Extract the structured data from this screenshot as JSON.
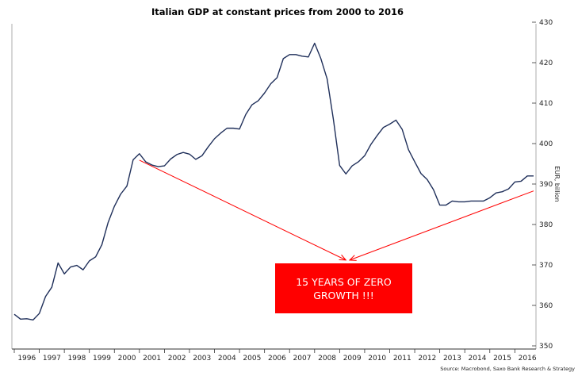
{
  "chart_data": {
    "type": "line",
    "title": "Italian GDP at constant prices from 2000 to 2016",
    "ylabel": "EUR, billion",
    "ylim": [
      350,
      430
    ],
    "y_ticks": [
      350,
      360,
      370,
      380,
      390,
      400,
      410,
      420,
      430
    ],
    "y_axis_side": "right",
    "grid": false,
    "x_tick_labels": [
      "1996",
      "1997",
      "1998",
      "1999",
      "2000",
      "2001",
      "2002",
      "2003",
      "2004",
      "2005",
      "2006",
      "2007",
      "2008",
      "2009",
      "2010",
      "2011",
      "2012",
      "2013",
      "2014",
      "2015",
      "2016"
    ],
    "series": [
      {
        "color": "#1f2f5a",
        "x": [
          1995.5,
          1995.75,
          1996,
          1996.25,
          1996.5,
          1996.75,
          1997,
          1997.25,
          1997.5,
          1997.75,
          1998,
          1998.25,
          1998.5,
          1998.75,
          1999,
          1999.25,
          1999.5,
          1999.75,
          2000,
          2000.25,
          2000.5,
          2000.75,
          2001,
          2001.25,
          2001.5,
          2001.75,
          2002,
          2002.25,
          2002.5,
          2002.75,
          2003,
          2003.25,
          2003.5,
          2003.75,
          2004,
          2004.25,
          2004.5,
          2004.75,
          2005,
          2005.25,
          2005.5,
          2005.75,
          2006,
          2006.25,
          2006.5,
          2006.75,
          2007,
          2007.25,
          2007.5,
          2007.75,
          2008,
          2008.25,
          2008.5,
          2008.75,
          2009,
          2009.25,
          2009.5,
          2009.75,
          2010,
          2010.25,
          2010.5,
          2010.75,
          2011,
          2011.25,
          2011.5,
          2011.75,
          2012,
          2012.25,
          2012.5,
          2012.75,
          2013,
          2013.25,
          2013.5,
          2013.75,
          2014,
          2014.25,
          2014.5,
          2014.75,
          2015,
          2015.25,
          2015.5,
          2015.75,
          2016,
          2016.25
        ],
        "values": [
          357.8,
          356.6,
          356.7,
          356.4,
          358.0,
          362.2,
          364.5,
          370.5,
          367.8,
          369.5,
          369.9,
          368.8,
          371.0,
          372.0,
          375.0,
          380.5,
          384.5,
          387.5,
          389.5,
          396.0,
          397.5,
          395.5,
          394.7,
          394.3,
          394.5,
          396.2,
          397.3,
          397.8,
          397.4,
          396.1,
          397.0,
          399.2,
          401.2,
          402.6,
          403.8,
          403.8,
          403.6,
          407.2,
          409.6,
          410.6,
          412.5,
          414.8,
          416.3,
          421.0,
          422.0,
          422.0,
          421.6,
          421.4,
          424.8,
          421.0,
          416.0,
          406.0,
          394.6,
          392.5,
          394.5,
          395.5,
          397.0,
          399.8,
          402.0,
          404.0,
          404.8,
          405.8,
          403.5,
          398.5,
          395.5,
          392.6,
          391.1,
          388.6,
          384.8,
          384.8,
          385.8,
          385.6,
          385.6,
          385.8,
          385.8,
          385.8,
          386.6,
          387.8,
          388.1,
          388.8,
          390.5,
          390.7,
          392.0,
          392.0
        ]
      }
    ],
    "annotation": {
      "text_lines": [
        "15 YEARS OF ZERO",
        "GROWTH !!!"
      ],
      "box_color": "#ff0000",
      "text_color": "#ffffff",
      "arrow_color": "#ff0000",
      "arrows": [
        {
          "from": [
            2000.5,
            395.9
          ],
          "to": [
            2008.75,
            371.2
          ]
        },
        {
          "from": [
            2016.25,
            388.3
          ],
          "to": [
            2008.9,
            371.2
          ]
        }
      ]
    },
    "source": "Source: Macrobond, Saxo Bank Research & Strategy"
  }
}
